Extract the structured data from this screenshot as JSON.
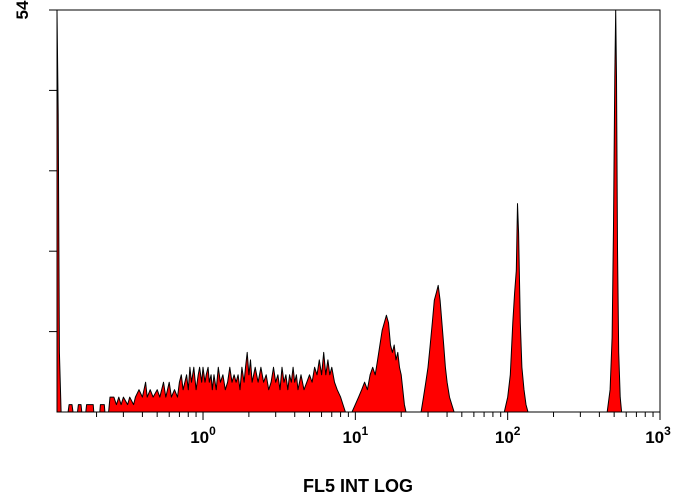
{
  "chart_data": {
    "type": "area",
    "title": "",
    "xlabel": "FL5 INT LOG",
    "ylabel": "",
    "x_scale": "log",
    "xlim": [
      0.11,
      1000
    ],
    "ylim": [
      0,
      54
    ],
    "grid": false,
    "fill_color": "#ff0000",
    "stroke_color": "#000000",
    "x_ticks": [
      {
        "base": "10",
        "exp": "0",
        "value": 1
      },
      {
        "base": "10",
        "exp": "1",
        "value": 10
      },
      {
        "base": "10",
        "exp": "2",
        "value": 100
      },
      {
        "base": "10",
        "exp": "3",
        "value": 1000
      }
    ],
    "y_tick_label": "54",
    "y_minor_ticks": [
      10.8,
      21.6,
      32.4,
      43.2,
      54
    ],
    "series": [
      {
        "points": [
          [
            0.11,
            54
          ],
          [
            0.112,
            40
          ],
          [
            0.114,
            8
          ],
          [
            0.117,
            0
          ],
          [
            0.13,
            0
          ],
          [
            0.132,
            1
          ],
          [
            0.138,
            1
          ],
          [
            0.14,
            0
          ],
          [
            0.15,
            0
          ],
          [
            0.152,
            1
          ],
          [
            0.158,
            1
          ],
          [
            0.16,
            0
          ],
          [
            0.17,
            0
          ],
          [
            0.172,
            1
          ],
          [
            0.19,
            1
          ],
          [
            0.192,
            0
          ],
          [
            0.21,
            0
          ],
          [
            0.212,
            1
          ],
          [
            0.225,
            1
          ],
          [
            0.227,
            0
          ],
          [
            0.24,
            0
          ],
          [
            0.245,
            2
          ],
          [
            0.26,
            2
          ],
          [
            0.27,
            1
          ],
          [
            0.28,
            2
          ],
          [
            0.29,
            1
          ],
          [
            0.3,
            2
          ],
          [
            0.32,
            1
          ],
          [
            0.33,
            2
          ],
          [
            0.35,
            1
          ],
          [
            0.36,
            2
          ],
          [
            0.38,
            3
          ],
          [
            0.4,
            2
          ],
          [
            0.42,
            4
          ],
          [
            0.43,
            2
          ],
          [
            0.45,
            3
          ],
          [
            0.47,
            2
          ],
          [
            0.5,
            3
          ],
          [
            0.52,
            2
          ],
          [
            0.55,
            4
          ],
          [
            0.57,
            2
          ],
          [
            0.6,
            4
          ],
          [
            0.62,
            2
          ],
          [
            0.65,
            3
          ],
          [
            0.68,
            2
          ],
          [
            0.7,
            4
          ],
          [
            0.72,
            5
          ],
          [
            0.74,
            3
          ],
          [
            0.78,
            5
          ],
          [
            0.8,
            3
          ],
          [
            0.82,
            6
          ],
          [
            0.84,
            4
          ],
          [
            0.87,
            6
          ],
          [
            0.9,
            3
          ],
          [
            0.93,
            5
          ],
          [
            0.95,
            6
          ],
          [
            0.98,
            4
          ],
          [
            1.0,
            6
          ],
          [
            1.03,
            4
          ],
          [
            1.05,
            5
          ],
          [
            1.08,
            6
          ],
          [
            1.1,
            4
          ],
          [
            1.13,
            5
          ],
          [
            1.15,
            3
          ],
          [
            1.18,
            5
          ],
          [
            1.22,
            3
          ],
          [
            1.26,
            6
          ],
          [
            1.3,
            4
          ],
          [
            1.35,
            5
          ],
          [
            1.4,
            3
          ],
          [
            1.45,
            4
          ],
          [
            1.5,
            6
          ],
          [
            1.55,
            4
          ],
          [
            1.6,
            5
          ],
          [
            1.65,
            4
          ],
          [
            1.7,
            5
          ],
          [
            1.75,
            3
          ],
          [
            1.8,
            6
          ],
          [
            1.86,
            4
          ],
          [
            1.9,
            6
          ],
          [
            1.95,
            8
          ],
          [
            2.0,
            5
          ],
          [
            2.05,
            7
          ],
          [
            2.1,
            4
          ],
          [
            2.2,
            6
          ],
          [
            2.3,
            4
          ],
          [
            2.4,
            6
          ],
          [
            2.5,
            4
          ],
          [
            2.6,
            5
          ],
          [
            2.7,
            3
          ],
          [
            2.8,
            4
          ],
          [
            2.9,
            6
          ],
          [
            3.0,
            4
          ],
          [
            3.1,
            5
          ],
          [
            3.2,
            3
          ],
          [
            3.3,
            6
          ],
          [
            3.4,
            4
          ],
          [
            3.5,
            5
          ],
          [
            3.6,
            3
          ],
          [
            3.7,
            5
          ],
          [
            3.8,
            4
          ],
          [
            3.9,
            6
          ],
          [
            4.0,
            4
          ],
          [
            4.1,
            5
          ],
          [
            4.2,
            3
          ],
          [
            4.4,
            5
          ],
          [
            4.6,
            3
          ],
          [
            4.8,
            4
          ],
          [
            5.0,
            5
          ],
          [
            5.2,
            4
          ],
          [
            5.4,
            6
          ],
          [
            5.6,
            5
          ],
          [
            5.8,
            7
          ],
          [
            6.0,
            5
          ],
          [
            6.2,
            8
          ],
          [
            6.4,
            5
          ],
          [
            6.6,
            7
          ],
          [
            6.8,
            5
          ],
          [
            7.0,
            6
          ],
          [
            7.3,
            4
          ],
          [
            7.6,
            3
          ],
          [
            8.0,
            2
          ],
          [
            8.3,
            1
          ],
          [
            8.6,
            0
          ],
          [
            9.5,
            0
          ],
          [
            10.0,
            1
          ],
          [
            10.5,
            2
          ],
          [
            11.0,
            3
          ],
          [
            11.5,
            4
          ],
          [
            12.0,
            3
          ],
          [
            12.5,
            5
          ],
          [
            13.0,
            6
          ],
          [
            13.5,
            5
          ],
          [
            14.0,
            7
          ],
          [
            14.5,
            9
          ],
          [
            15.0,
            11
          ],
          [
            15.5,
            12
          ],
          [
            16.0,
            13
          ],
          [
            16.5,
            12
          ],
          [
            17.0,
            9
          ],
          [
            17.5,
            8
          ],
          [
            18.0,
            9
          ],
          [
            18.5,
            7
          ],
          [
            19.0,
            8
          ],
          [
            19.5,
            6
          ],
          [
            20.0,
            5
          ],
          [
            20.5,
            3
          ],
          [
            21.0,
            1
          ],
          [
            21.5,
            0
          ],
          [
            27.0,
            0
          ],
          [
            28.0,
            2
          ],
          [
            29.0,
            4
          ],
          [
            30.0,
            6
          ],
          [
            31.0,
            9
          ],
          [
            32.0,
            12
          ],
          [
            33.0,
            15
          ],
          [
            34.0,
            16
          ],
          [
            35.0,
            17
          ],
          [
            36.0,
            15
          ],
          [
            37.0,
            12
          ],
          [
            38.0,
            9
          ],
          [
            39.0,
            6
          ],
          [
            40.0,
            4
          ],
          [
            41.5,
            2
          ],
          [
            43.0,
            1
          ],
          [
            44.5,
            0
          ],
          [
            95.0,
            0
          ],
          [
            100.0,
            2
          ],
          [
            104.0,
            5
          ],
          [
            108.0,
            12
          ],
          [
            111.0,
            16
          ],
          [
            114.0,
            19
          ],
          [
            116.0,
            28
          ],
          [
            118.0,
            24
          ],
          [
            121.0,
            12
          ],
          [
            124.0,
            6
          ],
          [
            128.0,
            3
          ],
          [
            132.0,
            1
          ],
          [
            136.0,
            0
          ],
          [
            450.0,
            0
          ],
          [
            470.0,
            3
          ],
          [
            485.0,
            10
          ],
          [
            495.0,
            25
          ],
          [
            505.0,
            45
          ],
          [
            512.0,
            54
          ],
          [
            518.0,
            45
          ],
          [
            526.0,
            22
          ],
          [
            536.0,
            8
          ],
          [
            548.0,
            2
          ],
          [
            560.0,
            0
          ],
          [
            1000.0,
            0
          ]
        ]
      }
    ]
  }
}
